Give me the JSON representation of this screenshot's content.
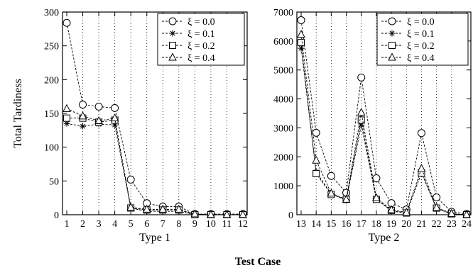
{
  "chart_data": [
    {
      "type": "line",
      "title": "",
      "xlabel": "Type 1",
      "ylabel": "Total Tardiness",
      "x": [
        1,
        2,
        3,
        4,
        5,
        6,
        7,
        8,
        9,
        10,
        11,
        12
      ],
      "xticks": [
        "1",
        "2",
        "3",
        "4",
        "5",
        "6",
        "7",
        "8",
        "9",
        "10",
        "11",
        "12"
      ],
      "xlim": [
        1,
        12
      ],
      "ylim": [
        0,
        300
      ],
      "yticks": [
        "0",
        "50",
        "100",
        "150",
        "200",
        "250",
        "300"
      ],
      "grid": "vertical dotted",
      "legend": "top-right",
      "series": [
        {
          "name": "ξ = 0.0",
          "marker": "circle",
          "values": [
            284,
            163,
            160,
            158,
            52,
            17,
            12,
            12,
            1,
            1,
            1,
            1
          ]
        },
        {
          "name": "ξ = 0.1",
          "marker": "asterisk",
          "values": [
            135,
            131,
            134,
            133,
            10,
            5,
            5,
            5,
            0,
            0,
            0,
            0
          ]
        },
        {
          "name": "ξ = 0.2",
          "marker": "square",
          "values": [
            143,
            143,
            137,
            140,
            10,
            7,
            7,
            7,
            0,
            0,
            0,
            0
          ]
        },
        {
          "name": "ξ = 0.4",
          "marker": "triangle",
          "values": [
            157,
            146,
            139,
            143,
            11,
            8,
            8,
            8,
            1,
            0,
            0,
            0
          ]
        }
      ]
    },
    {
      "type": "line",
      "title": "",
      "xlabel": "Type 2",
      "ylabel": "",
      "x": [
        13,
        14,
        15,
        16,
        17,
        18,
        19,
        20,
        21,
        22,
        23,
        24
      ],
      "xticks": [
        "13",
        "14",
        "15",
        "16",
        "17",
        "18",
        "19",
        "20",
        "21",
        "22",
        "23",
        "24"
      ],
      "xlim": [
        13,
        24
      ],
      "ylim": [
        0,
        7000
      ],
      "yticks": [
        "0",
        "1000",
        "2000",
        "3000",
        "4000",
        "5000",
        "6000",
        "7000"
      ],
      "grid": "vertical dotted",
      "legend": "top-right",
      "series": [
        {
          "name": "ξ = 0.0",
          "marker": "circle",
          "values": [
            6720,
            2830,
            1340,
            760,
            4740,
            1260,
            400,
            180,
            2820,
            600,
            100,
            30
          ]
        },
        {
          "name": "ξ = 0.1",
          "marker": "asterisk",
          "values": [
            5750,
            1480,
            720,
            500,
            3100,
            540,
            130,
            50,
            1460,
            220,
            20,
            0
          ]
        },
        {
          "name": "ξ = 0.2",
          "marker": "square",
          "values": [
            5950,
            1420,
            700,
            530,
            3270,
            530,
            150,
            60,
            1440,
            230,
            30,
            0
          ]
        },
        {
          "name": "ξ = 0.4",
          "marker": "triangle",
          "values": [
            6230,
            1880,
            740,
            530,
            3530,
            580,
            170,
            80,
            1600,
            250,
            40,
            0
          ]
        }
      ]
    }
  ],
  "figure": {
    "xlabel": "Test Case"
  }
}
